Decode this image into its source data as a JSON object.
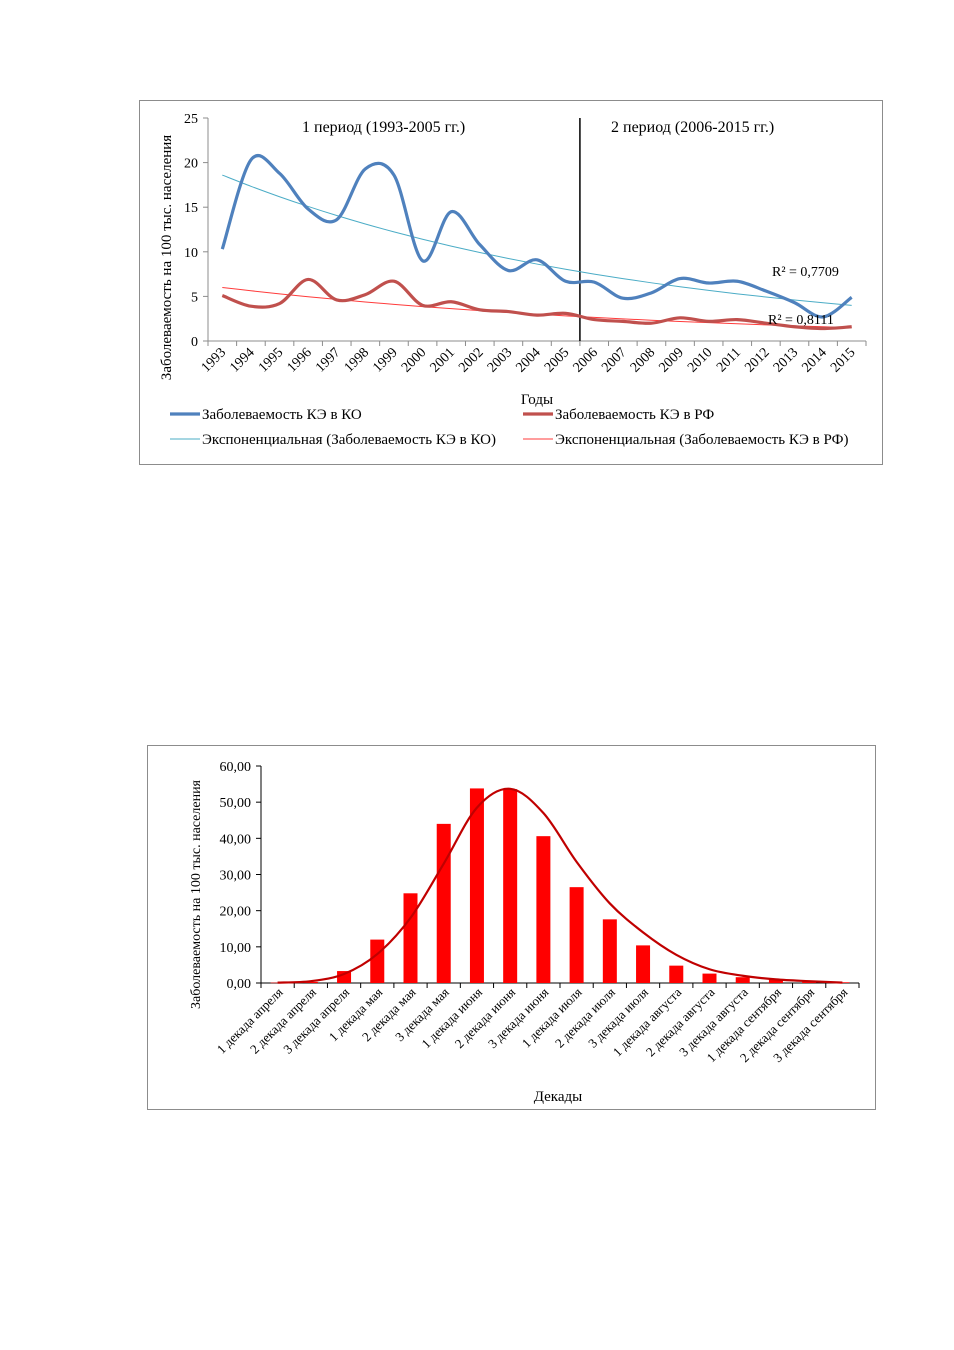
{
  "chart_data": [
    {
      "type": "line",
      "ylabel": "Заболеваемость на 100 тыс. населения",
      "xlabel": "Годы",
      "ylim": [
        0,
        25
      ],
      "yticks": [
        0,
        5,
        10,
        15,
        20,
        25
      ],
      "categories": [
        "1993",
        "1994",
        "1995",
        "1996",
        "1997",
        "1998",
        "1999",
        "2000",
        "2001",
        "2002",
        "2003",
        "2004",
        "2005",
        "2006",
        "2007",
        "2008",
        "2009",
        "2010",
        "2011",
        "2012",
        "2013",
        "2014",
        "2015"
      ],
      "series": [
        {
          "name": "Заболеваемость КЭ в КО",
          "color": "#4f81bd",
          "values": [
            10.3,
            20.3,
            18.8,
            14.8,
            13.6,
            19.3,
            18.6,
            9.0,
            14.5,
            10.8,
            7.9,
            9.1,
            6.7,
            6.6,
            4.8,
            5.4,
            7.0,
            6.5,
            6.7,
            5.6,
            4.3,
            2.7,
            4.9
          ]
        },
        {
          "name": "Заболеваемость КЭ в РФ",
          "color": "#c0504d",
          "values": [
            5.1,
            3.9,
            4.2,
            6.9,
            4.6,
            5.2,
            6.7,
            4.0,
            4.4,
            3.5,
            3.3,
            2.9,
            3.1,
            2.4,
            2.2,
            2.0,
            2.6,
            2.2,
            2.4,
            2.0,
            1.6,
            1.4,
            1.6
          ]
        },
        {
          "name": "Экспоненциальная (Заболеваемость КЭ в КО)",
          "color": "#4bacc6",
          "trend": "exponential",
          "start": 18.6,
          "end": 4.0
        },
        {
          "name": "Экспоненциальная (Заболеваемость КЭ в РФ)",
          "color": "#ff3b3b",
          "trend": "exponential",
          "start": 6.0,
          "end": 1.5
        }
      ],
      "annotations": [
        {
          "text": "1 период (1993-2005  гг.)"
        },
        {
          "text": "2 период (2006-2015  гг.)"
        },
        {
          "text": "R² = 0,7709"
        },
        {
          "text": "R² = 0,8111"
        }
      ],
      "divider_after": "2005",
      "legend_position": "bottom"
    },
    {
      "type": "bar",
      "ylabel": "Заболеваемость на 100 тыс. населения",
      "xlabel": "Декады",
      "ylim": [
        0,
        60
      ],
      "yticks": [
        "0,00",
        "10,00",
        "20,00",
        "30,00",
        "40,00",
        "50,00",
        "60,00"
      ],
      "categories": [
        "1 декада апреля",
        "2 декада апреля",
        "3 декада апреля",
        "1 декада мая",
        "2 декада мая",
        "3 декада мая",
        "1 декада июня",
        "2 декада июня",
        "3 декада июня",
        "1 декада июля",
        "2 декада июля",
        "3 декада июля",
        "1 декада августа",
        "2 декада августа",
        "3 декада августа",
        "1 декада сентября",
        "2 декада сентября",
        "3 декада сентября"
      ],
      "values": [
        0.1,
        0.3,
        3.3,
        12.0,
        24.8,
        44.0,
        53.8,
        53.6,
        40.6,
        26.5,
        17.6,
        10.4,
        4.8,
        2.6,
        1.6,
        1.0,
        0.5,
        0.2
      ],
      "fit_line": [
        0.1,
        0.5,
        2.5,
        8.0,
        18.0,
        33.0,
        48.5,
        53.7,
        47.0,
        33.5,
        22.0,
        14.0,
        7.8,
        3.8,
        2.0,
        1.0,
        0.5,
        0.1
      ],
      "bar_color": "#ff0000",
      "line_color": "#c00000"
    }
  ]
}
